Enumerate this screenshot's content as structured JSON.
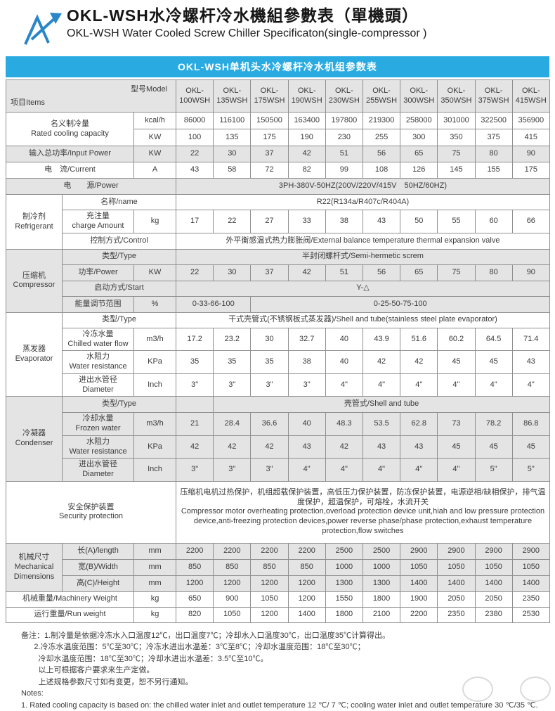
{
  "header": {
    "title_zh": "OKL-WSH水冷螺杆冷水機組參數表（單機頭）",
    "title_en": "OKL-WSH Water Cooled Screw Chiller Specificaton(single-compressor )"
  },
  "banner": {
    "text": "OKL-WSH单机头水冷螺杆冷水机组参数表",
    "color": "#29abe2"
  },
  "table": {
    "corner": {
      "items": "项目Items",
      "model": "型号Model"
    },
    "models": [
      "OKL-\n100WSH",
      "OKL-\n135WSH",
      "OKL-\n175WSH",
      "OKL-\n190WSH",
      "OKL-\n230WSH",
      "OKL-\n255WSH",
      "OKL-\n300WSH",
      "OKL-\n350WSH",
      "OKL-\n375WSH",
      "OKL-\n415WSH"
    ],
    "rows": {
      "cooling": {
        "label": "名义制冷量\nRated cooling capacity",
        "kcal": {
          "unit": "kcal/h",
          "values": [
            "86000",
            "116100",
            "150500",
            "163400",
            "197800",
            "219300",
            "258000",
            "301000",
            "322500",
            "356900"
          ]
        },
        "kw": {
          "unit": "KW",
          "values": [
            "100",
            "135",
            "175",
            "190",
            "230",
            "255",
            "300",
            "350",
            "375",
            "415"
          ]
        }
      },
      "input_power": {
        "label": "输入总功率/Input Power",
        "unit": "KW",
        "values": [
          "22",
          "30",
          "37",
          "42",
          "51",
          "56",
          "65",
          "75",
          "80",
          "90"
        ]
      },
      "current": {
        "label": "电　流/Current",
        "unit": "A",
        "values": [
          "43",
          "58",
          "72",
          "82",
          "99",
          "108",
          "126",
          "145",
          "155",
          "175"
        ]
      },
      "power_supply": {
        "label": "电　　源/Power",
        "value": "3PH-380V-50HZ(200V/220V/415V　50HZ/60HZ)"
      },
      "refrigerant": {
        "group": "制冷剂\nRefrigerant",
        "name": {
          "label": "名称/name",
          "value": "R22(R134a/R407c/R404A)"
        },
        "charge": {
          "label": "充注量\ncharge Amount",
          "unit": "kg",
          "values": [
            "17",
            "22",
            "27",
            "33",
            "38",
            "43",
            "50",
            "55",
            "60",
            "66"
          ]
        },
        "control": {
          "label": "控制方式/Control",
          "value": "外平衡感温式热力膨胀阀/External balance temperature thermal expansion valve"
        }
      },
      "compressor": {
        "group": "压缩机\nCompressor",
        "type": {
          "label": "类型/Type",
          "value": "半封闭螺杆式/Semi-hermetic screm"
        },
        "power": {
          "label": "功率/Power",
          "unit": "KW",
          "values": [
            "22",
            "30",
            "37",
            "42",
            "51",
            "56",
            "65",
            "75",
            "80",
            "90"
          ]
        },
        "start": {
          "label": "启动方式/Start",
          "value": "Y-△"
        },
        "range": {
          "label": "能量调节范围",
          "unit": "%",
          "low": "0-33-66-100",
          "high": "0-25-50-75-100"
        }
      },
      "evaporator": {
        "group": "蒸发器\nEvaporator",
        "type": {
          "label": "类型/Type",
          "value": "干式壳管式(不锈钢板式蒸发器)/Shell and tube(stainless steel plate evaporator)"
        },
        "flow": {
          "label": "冷冻水量\nChilled water flow",
          "unit": "m3/h",
          "values": [
            "17.2",
            "23.2",
            "30",
            "32.7",
            "40",
            "43.9",
            "51.6",
            "60.2",
            "64.5",
            "71.4"
          ]
        },
        "resistance": {
          "label": "水阻力\nWater resistance",
          "unit": "KPa",
          "values": [
            "35",
            "35",
            "35",
            "38",
            "40",
            "42",
            "42",
            "45",
            "45",
            "43"
          ]
        },
        "diameter": {
          "label": "进出水管径\nDiameter",
          "unit": "Inch",
          "values": [
            "3\"",
            "3\"",
            "3\"",
            "3\"",
            "4\"",
            "4\"",
            "4\"",
            "4\"",
            "4\"",
            "4\""
          ]
        }
      },
      "condenser": {
        "group": "冷凝器\nCondenser",
        "type": {
          "label": "类型/Type",
          "first": "",
          "value": "壳管式/Shell and tube"
        },
        "flow": {
          "label": "冷却水量\nFrozen water",
          "unit": "m3/h",
          "values": [
            "21",
            "28.4",
            "36.6",
            "40",
            "48.3",
            "53.5",
            "62.8",
            "73",
            "78.2",
            "86.8"
          ]
        },
        "resistance": {
          "label": "水阻力\nWater resistance",
          "unit": "KPa",
          "values": [
            "42",
            "42",
            "42",
            "43",
            "42",
            "43",
            "43",
            "45",
            "45",
            "45"
          ]
        },
        "diameter": {
          "label": "进出水管径\nDiameter",
          "unit": "Inch",
          "values": [
            "3\"",
            "3\"",
            "3\"",
            "4\"",
            "4\"",
            "4\"",
            "4\"",
            "4\"",
            "5\"",
            "5\""
          ]
        }
      },
      "security": {
        "label": "安全保护装置\nSecurity protection",
        "text": "压缩机电机过热保护，机组超载保护装置，高低压力保护装置，防冻保护装置，电源逆相/缺相保护，排气温度保护，超温保护，可熔栓，水流开关\nCompressor motor overheating protection,overload protection device unit,hiah and low pressure protection device,anti-freezing protection devices,power reverse phase/phase protection,exhaust temperature protection,flow switches"
      },
      "dimensions": {
        "group": "机械尺寸\nMechanical\nDimensions",
        "length": {
          "label": "长(A)/length",
          "unit": "mm",
          "values": [
            "2200",
            "2200",
            "2200",
            "2200",
            "2500",
            "2500",
            "2900",
            "2900",
            "2900",
            "2900"
          ]
        },
        "width": {
          "label": "宽(B)/Width",
          "unit": "mm",
          "values": [
            "850",
            "850",
            "850",
            "850",
            "1000",
            "1000",
            "1050",
            "1050",
            "1050",
            "1050"
          ]
        },
        "height": {
          "label": "高(C)/Height",
          "unit": "mm",
          "values": [
            "1200",
            "1200",
            "1200",
            "1200",
            "1300",
            "1300",
            "1400",
            "1400",
            "1400",
            "1400"
          ]
        }
      },
      "machinery_weight": {
        "label": "机械重量/Machinery Weight",
        "unit": "kg",
        "values": [
          "650",
          "900",
          "1050",
          "1200",
          "1550",
          "1800",
          "1900",
          "2050",
          "2050",
          "2350"
        ]
      },
      "run_weight": {
        "label": "运行重量/Run weight",
        "unit": "kg",
        "values": [
          "820",
          "1050",
          "1200",
          "1400",
          "1800",
          "2100",
          "2200",
          "2350",
          "2380",
          "2530"
        ]
      }
    }
  },
  "notes": {
    "lines": [
      "备注：1.制冷量是依据冷冻水入口温度12℃，出口温度7℃；冷却水入口温度30℃，出口温度35℃计算得出。",
      "      2.冷冻水温度范围：5℃至30℃；冷冻水进出水温差：3℃至8℃；冷却水温度范围：18℃至30℃；",
      "        冷却水温度范围：18℃至30℃；冷却水进出水温差：3.5℃至10℃。",
      "        以上可根据客户要求来生产定做。",
      "        上述规格参数尺寸如有变更，恕不另行通知。",
      "Notes:",
      "1. Rated cooling capacity is based on: the chilled water inlet and outlet temperature 12 ℃/ 7 ℃; cooling water inlet and outlet temperature 30 ℃/35 ℃."
    ]
  }
}
